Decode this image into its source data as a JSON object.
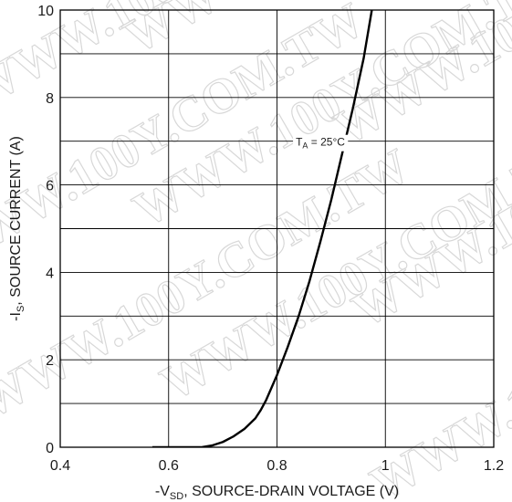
{
  "chart_data": {
    "type": "line",
    "xlim": [
      0.4,
      1.2
    ],
    "ylim": [
      0,
      10
    ],
    "x_ticks": [
      0.4,
      0.6,
      0.8,
      1,
      1.2
    ],
    "y_ticks": [
      0,
      2,
      4,
      6,
      8,
      10
    ],
    "x_tick_labels": [
      "0.4",
      "0.6",
      "0.8",
      "1",
      "1.2"
    ],
    "y_tick_labels": [
      "0",
      "2",
      "4",
      "6",
      "8",
      "10"
    ],
    "x_grid_step": 0.2,
    "y_grid_step": 1,
    "grid": true,
    "xlabel": {
      "pre": "-V",
      "sub": "SD",
      "post": ", SOURCE-DRAIN VOLTAGE (V)"
    },
    "ylabel": {
      "pre": "-I",
      "sub": "S",
      "post": ", SOURCE CURRENT (A)"
    },
    "annotation": {
      "pre": "T",
      "sub": "A",
      "post": " = 25°C",
      "x": 0.88,
      "y": 7.0
    },
    "watermark": "WWW.100Y.COM.TW",
    "series": [
      {
        "color": "#000000",
        "points": [
          [
            0.57,
            0
          ],
          [
            0.66,
            0
          ],
          [
            0.68,
            0.04
          ],
          [
            0.7,
            0.12
          ],
          [
            0.72,
            0.25
          ],
          [
            0.74,
            0.42
          ],
          [
            0.76,
            0.66
          ],
          [
            0.77,
            0.85
          ],
          [
            0.78,
            1.08
          ],
          [
            0.8,
            1.65
          ],
          [
            0.82,
            2.3
          ],
          [
            0.84,
            3.0
          ],
          [
            0.86,
            3.8
          ],
          [
            0.88,
            4.7
          ],
          [
            0.9,
            5.65
          ],
          [
            0.92,
            6.7
          ],
          [
            0.94,
            7.75
          ],
          [
            0.96,
            8.9
          ],
          [
            0.975,
            10.0
          ]
        ]
      }
    ]
  }
}
